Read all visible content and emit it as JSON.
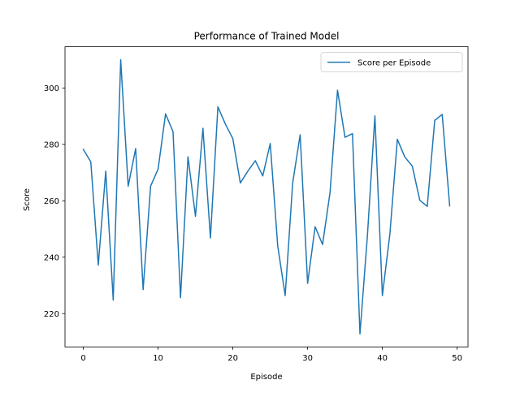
{
  "chart_data": {
    "type": "line",
    "title": "Performance of Trained Model",
    "xlabel": "Episode",
    "ylabel": "Score",
    "xlim": [
      -2.45,
      51.45
    ],
    "ylim": [
      208.2,
      314.6
    ],
    "xticks": [
      0,
      10,
      20,
      30,
      40,
      50
    ],
    "yticks": [
      220,
      240,
      260,
      280,
      300
    ],
    "grid": false,
    "legend_position": "top-right",
    "series": [
      {
        "name": "Score per Episode",
        "color": "#1f77b4",
        "x": [
          0,
          1,
          2,
          3,
          4,
          5,
          6,
          7,
          8,
          9,
          10,
          11,
          12,
          13,
          14,
          15,
          16,
          17,
          18,
          19,
          20,
          21,
          22,
          23,
          24,
          25,
          26,
          27,
          28,
          29,
          30,
          31,
          32,
          33,
          34,
          35,
          36,
          37,
          38,
          39,
          40,
          41,
          42,
          43,
          44,
          45,
          46,
          47,
          48,
          49
        ],
        "y": [
          278.2,
          273.8,
          237.2,
          270.5,
          224.8,
          310.0,
          265.2,
          278.5,
          228.5,
          265.2,
          271.2,
          290.8,
          284.5,
          225.6,
          275.6,
          254.5,
          285.7,
          246.8,
          293.3,
          287.2,
          282.0,
          266.3,
          270.5,
          274.2,
          268.8,
          280.3,
          244.0,
          226.4,
          266.3,
          283.4,
          230.7,
          250.8,
          244.5,
          263.0,
          299.2,
          282.5,
          283.8,
          212.8,
          247.7,
          290.1,
          226.4,
          248.2,
          281.8,
          275.5,
          272.3,
          260.2,
          258.0,
          288.5,
          290.6,
          258.2
        ]
      }
    ]
  }
}
